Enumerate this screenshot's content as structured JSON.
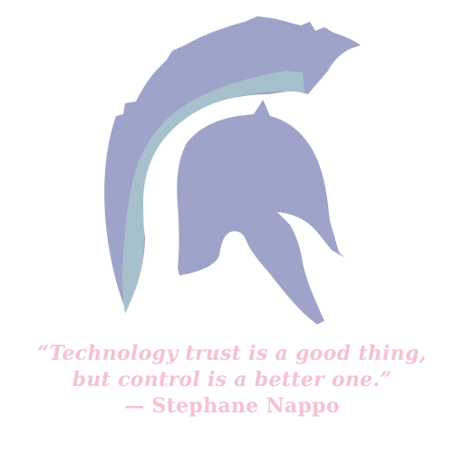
{
  "colors": {
    "helmet_main": "#9ea3c9",
    "helmet_band": "#a7c1cc",
    "quote_text": "#f4c1d6",
    "background": "#ffffff"
  },
  "icon": "spartan-helmet-icon",
  "quote": {
    "line1": "“Technology trust is a good thing,",
    "line2": "but control is a better one.”",
    "attribution": "— Stephane Nappo"
  }
}
